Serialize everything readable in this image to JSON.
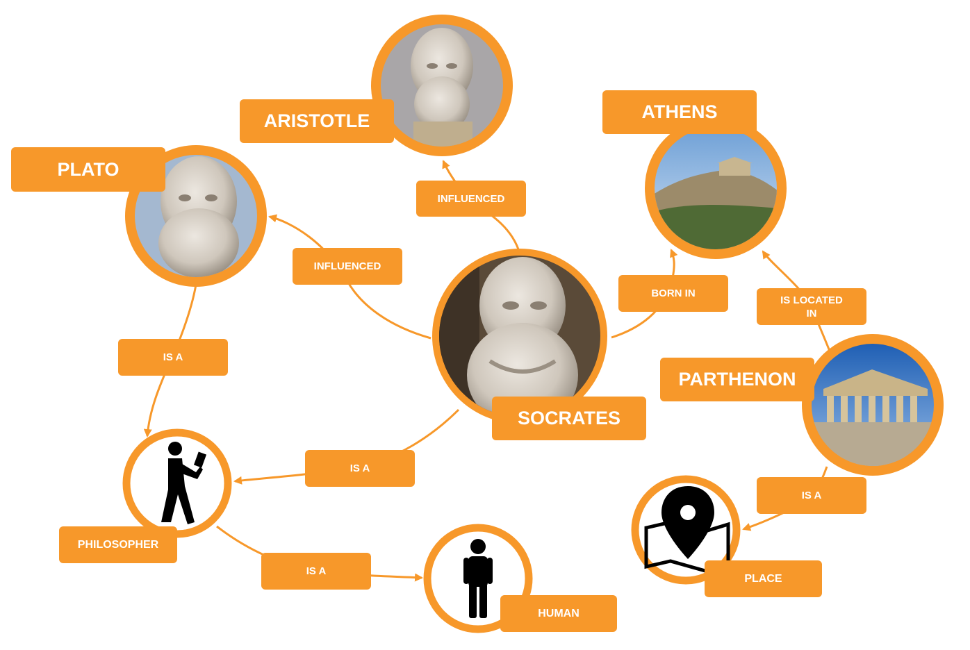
{
  "nodes": {
    "socrates": "SOCRATES",
    "aristotle": "ARISTOTLE",
    "plato": "PLATO",
    "athens": "ATHENS",
    "parthenon": "PARTHENON",
    "philosopher": "PHILOSOPHER",
    "human": "HUMAN",
    "place": "PLACE"
  },
  "edges": {
    "socrates_aristotle": "INFLUENCED",
    "socrates_plato": "INFLUENCED",
    "socrates_athens": "BORN IN",
    "parthenon_athens": "IS LOCATED IN",
    "plato_philosopher": "IS A",
    "socrates_philosopher": "IS A",
    "philosopher_human": "IS A",
    "parthenon_place": "IS A"
  },
  "colors": {
    "accent": "#f7982a",
    "label_text": "#ffffff",
    "icon": "#000000"
  },
  "icons": {
    "philosopher": "walking-reading-person-icon",
    "human": "standing-person-icon",
    "place": "map-pin-icon"
  }
}
